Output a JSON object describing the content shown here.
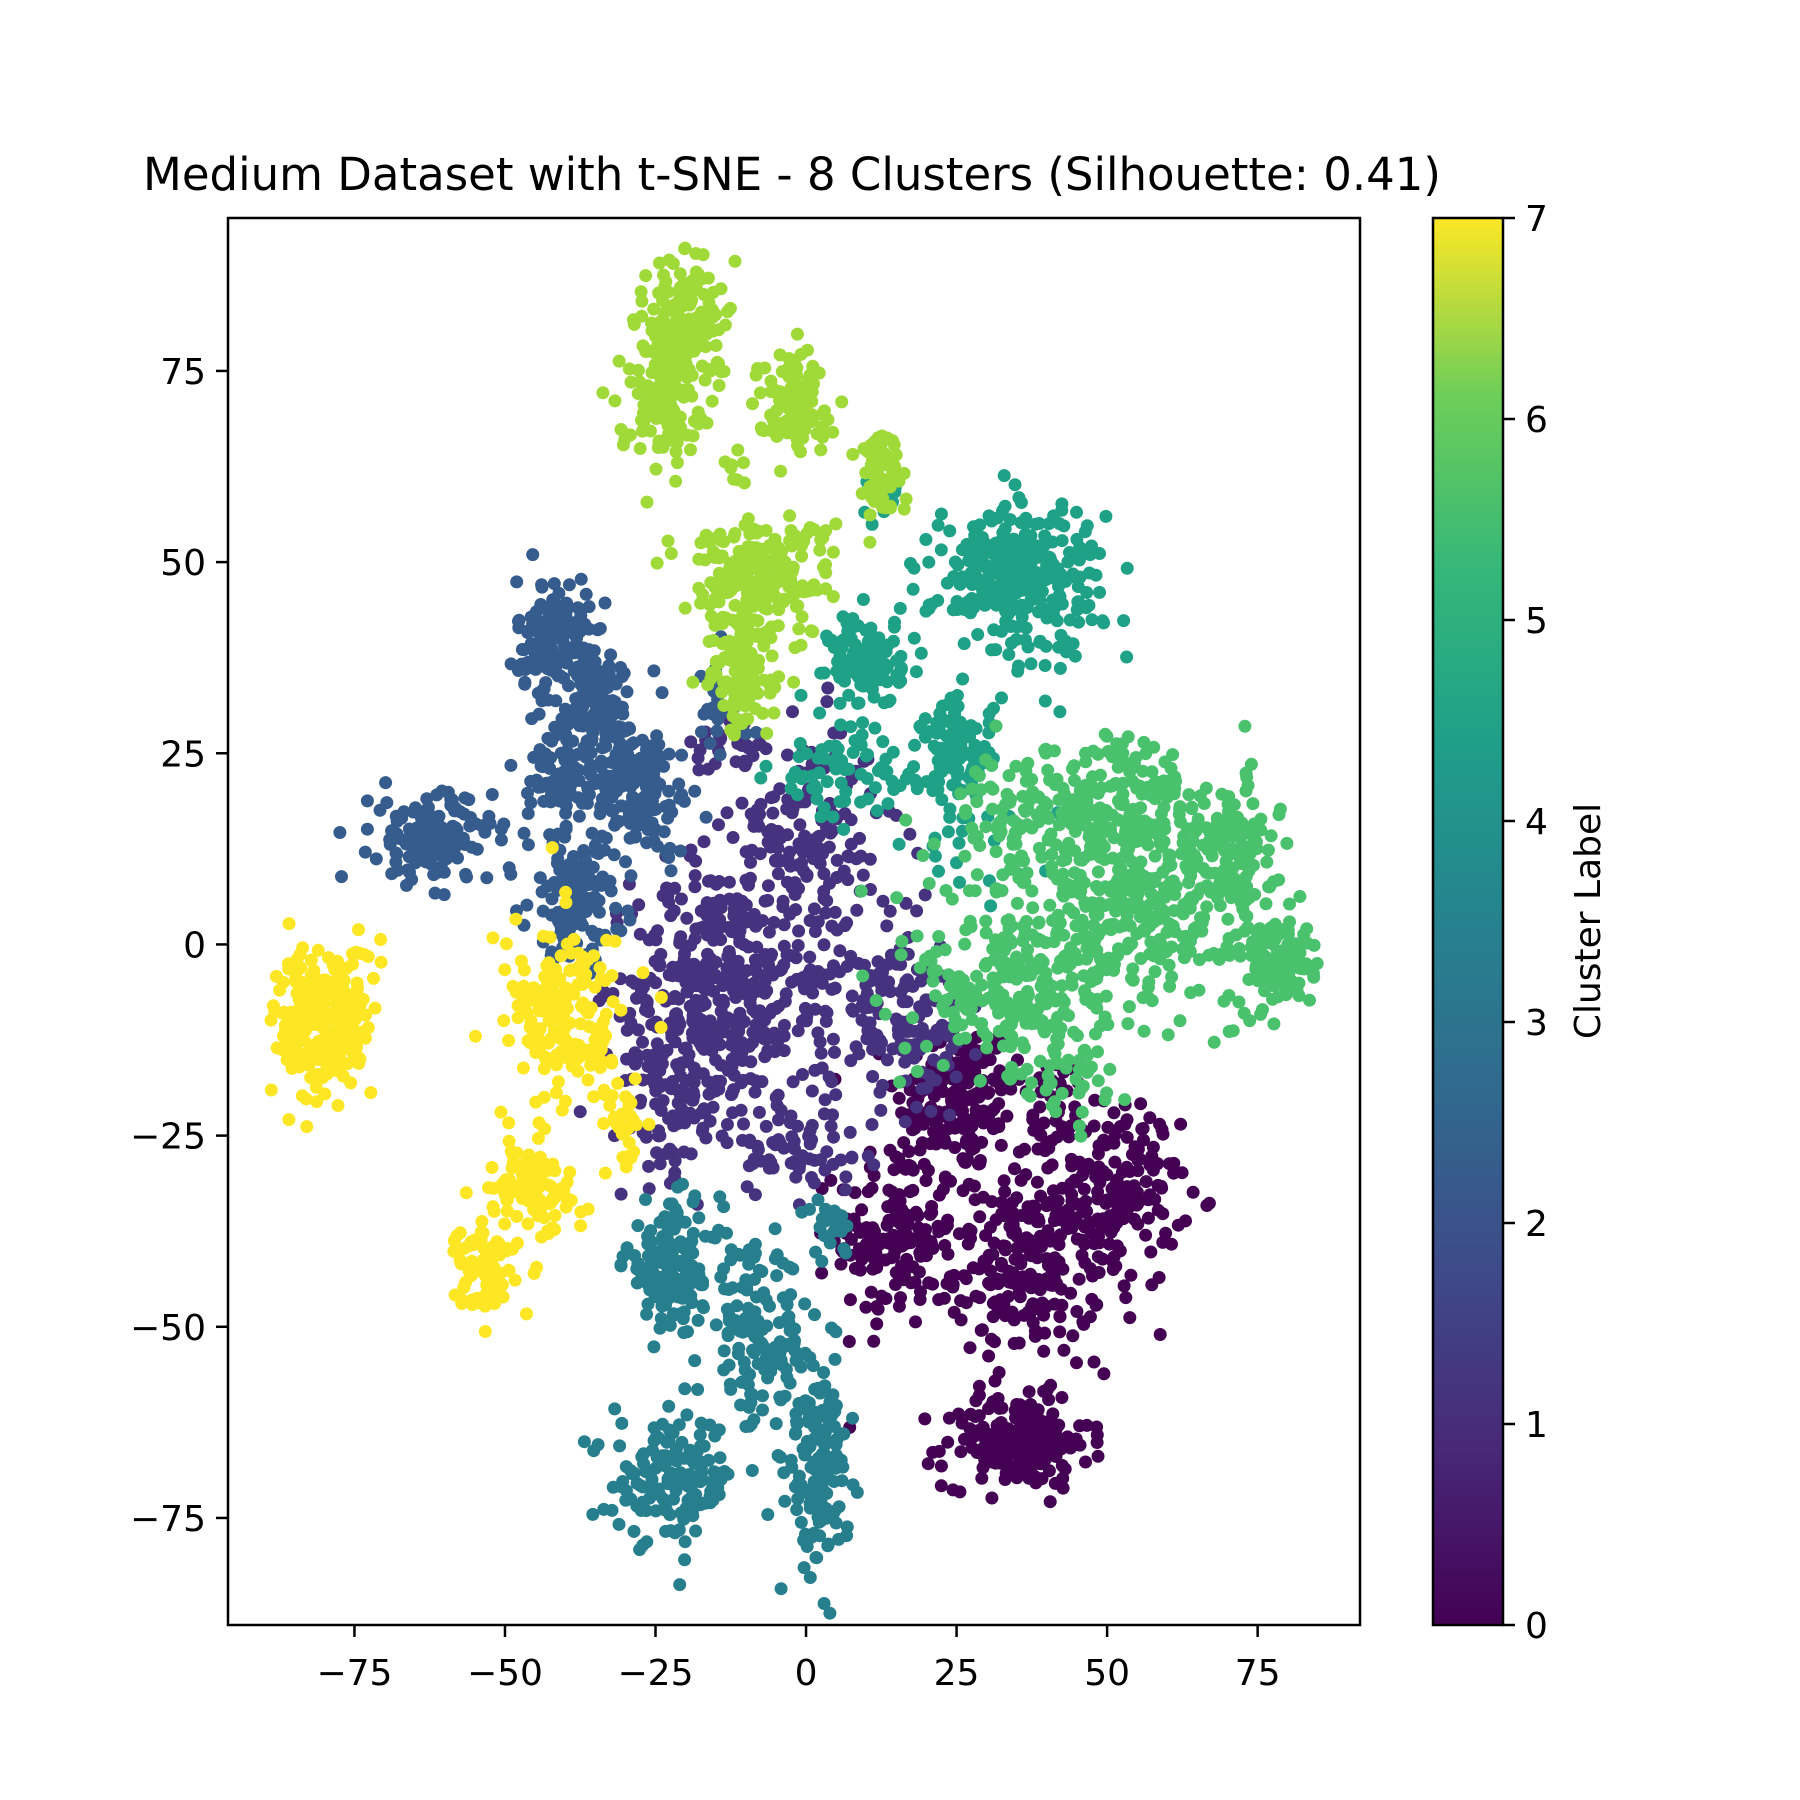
{
  "chart_data": {
    "type": "scatter",
    "title": "Medium Dataset with t-SNE - 8 Clusters (Silhouette: 0.41)",
    "xlabel": "",
    "ylabel": "",
    "xlim": [
      -96,
      92
    ],
    "ylim": [
      -89,
      95
    ],
    "x_ticks": [
      -75,
      -50,
      -25,
      0,
      25,
      50,
      75
    ],
    "x_tick_labels": [
      "−75",
      "−50",
      "−25",
      "0",
      "25",
      "50",
      "75"
    ],
    "y_ticks": [
      -75,
      -50,
      -25,
      0,
      25,
      50,
      75
    ],
    "y_tick_labels": [
      "−75",
      "−50",
      "−25",
      "0",
      "25",
      "50",
      "75"
    ],
    "grid": false,
    "colormap": "viridis",
    "colorbar": {
      "label": "Cluster Label",
      "range": [
        0,
        7
      ],
      "ticks": [
        0,
        1,
        2,
        3,
        4,
        5,
        6,
        7
      ],
      "tick_labels": [
        "0",
        "1",
        "2",
        "3",
        "4",
        "5",
        "6",
        "7"
      ]
    },
    "cluster_colors": [
      "#440154",
      "#46327e",
      "#365c8d",
      "#277f8e",
      "#1fa187",
      "#4ac16d",
      "#a0da39",
      "#fde725"
    ],
    "clusters": [
      {
        "label": 0,
        "blobs": [
          {
            "cx": 25,
            "cy": -20,
            "sx": 5,
            "sy": 5,
            "n": 160
          },
          {
            "cx": 15,
            "cy": -38,
            "sx": 5,
            "sy": 6,
            "n": 170
          },
          {
            "cx": 37,
            "cy": -42,
            "sx": 6,
            "sy": 6,
            "n": 220
          },
          {
            "cx": 52,
            "cy": -33,
            "sx": 5,
            "sy": 6,
            "n": 150
          },
          {
            "cx": 35,
            "cy": -65,
            "sx": 6,
            "sy": 3,
            "n": 200
          },
          {
            "cx": 40,
            "cy": -22,
            "sx": 6,
            "sy": 4,
            "n": 60
          }
        ]
      },
      {
        "label": 1,
        "blobs": [
          {
            "cx": -15,
            "cy": -5,
            "sx": 7,
            "sy": 8,
            "n": 320
          },
          {
            "cx": -22,
            "cy": -18,
            "sx": 5,
            "sy": 6,
            "n": 120
          },
          {
            "cx": 0,
            "cy": 15,
            "sx": 6,
            "sy": 7,
            "n": 160
          },
          {
            "cx": 5,
            "cy": -8,
            "sx": 9,
            "sy": 8,
            "n": 160
          },
          {
            "cx": 18,
            "cy": -10,
            "sx": 4,
            "sy": 5,
            "n": 80
          },
          {
            "cx": -2,
            "cy": -27,
            "sx": 6,
            "sy": 3,
            "n": 60
          },
          {
            "cx": -13,
            "cy": 25,
            "sx": 3,
            "sy": 3,
            "n": 25
          }
        ]
      },
      {
        "label": 2,
        "blobs": [
          {
            "cx": -42,
            "cy": 40,
            "sx": 3,
            "sy": 4,
            "n": 130
          },
          {
            "cx": -35,
            "cy": 30,
            "sx": 4,
            "sy": 5,
            "n": 140
          },
          {
            "cx": -27,
            "cy": 20,
            "sx": 4,
            "sy": 4,
            "n": 130
          },
          {
            "cx": -41,
            "cy": 22,
            "sx": 2.5,
            "sy": 3,
            "n": 70
          },
          {
            "cx": -62,
            "cy": 14,
            "sx": 5,
            "sy": 3,
            "n": 160
          },
          {
            "cx": -38,
            "cy": 6,
            "sx": 4,
            "sy": 4,
            "n": 140
          },
          {
            "cx": -15,
            "cy": 30,
            "sx": 3,
            "sy": 4,
            "n": 30
          }
        ]
      },
      {
        "label": 3,
        "blobs": [
          {
            "cx": -22,
            "cy": -42,
            "sx": 4,
            "sy": 4,
            "n": 150
          },
          {
            "cx": -8,
            "cy": -52,
            "sx": 4,
            "sy": 6,
            "n": 140
          },
          {
            "cx": -22,
            "cy": -70,
            "sx": 5,
            "sy": 4,
            "n": 150
          },
          {
            "cx": 2,
            "cy": -68,
            "sx": 2.5,
            "sy": 7,
            "n": 150
          },
          {
            "cx": 4,
            "cy": -37,
            "sx": 1.5,
            "sy": 2,
            "n": 20
          }
        ]
      },
      {
        "label": 4,
        "blobs": [
          {
            "cx": 35,
            "cy": 48,
            "sx": 7,
            "sy": 5,
            "n": 300
          },
          {
            "cx": 10,
            "cy": 37,
            "sx": 3,
            "sy": 3,
            "n": 120
          },
          {
            "cx": 25,
            "cy": 26,
            "sx": 3,
            "sy": 3,
            "n": 100
          },
          {
            "cx": 6,
            "cy": 22,
            "sx": 6,
            "sy": 3,
            "n": 70
          },
          {
            "cx": 13,
            "cy": 59,
            "sx": 2,
            "sy": 2,
            "n": 15
          },
          {
            "cx": 27,
            "cy": 15,
            "sx": 5,
            "sy": 4,
            "n": 30
          }
        ]
      },
      {
        "label": 5,
        "blobs": [
          {
            "cx": 35,
            "cy": 15,
            "sx": 6,
            "sy": 5,
            "n": 120
          },
          {
            "cx": 52,
            "cy": 18,
            "sx": 6,
            "sy": 5,
            "n": 160
          },
          {
            "cx": 55,
            "cy": 5,
            "sx": 8,
            "sy": 6,
            "n": 280
          },
          {
            "cx": 70,
            "cy": 12,
            "sx": 4,
            "sy": 5,
            "n": 130
          },
          {
            "cx": 78,
            "cy": -2,
            "sx": 3,
            "sy": 3,
            "n": 110
          },
          {
            "cx": 35,
            "cy": -6,
            "sx": 8,
            "sy": 6,
            "n": 240
          },
          {
            "cx": 43,
            "cy": -18,
            "sx": 5,
            "sy": 3,
            "n": 40
          }
        ]
      },
      {
        "label": 6,
        "blobs": [
          {
            "cx": -20,
            "cy": 82,
            "sx": 3,
            "sy": 4,
            "n": 140
          },
          {
            "cx": -24,
            "cy": 72,
            "sx": 3.5,
            "sy": 4,
            "n": 130
          },
          {
            "cx": -2,
            "cy": 71,
            "sx": 3,
            "sy": 3,
            "n": 110
          },
          {
            "cx": 12,
            "cy": 62,
            "sx": 2,
            "sy": 3,
            "n": 60
          },
          {
            "cx": -12,
            "cy": 63,
            "sx": 1,
            "sy": 1.5,
            "n": 8
          },
          {
            "cx": -8,
            "cy": 48,
            "sx": 6,
            "sy": 4,
            "n": 220
          },
          {
            "cx": -10,
            "cy": 35,
            "sx": 3,
            "sy": 4,
            "n": 100
          }
        ]
      },
      {
        "label": 7,
        "blobs": [
          {
            "cx": -80,
            "cy": -10,
            "sx": 4,
            "sy": 5,
            "n": 260
          },
          {
            "cx": -40,
            "cy": -10,
            "sx": 5,
            "sy": 6,
            "n": 180
          },
          {
            "cx": -46,
            "cy": -32,
            "sx": 4,
            "sy": 3,
            "n": 100
          },
          {
            "cx": -53,
            "cy": -42,
            "sx": 2.5,
            "sy": 3,
            "n": 80
          },
          {
            "cx": -30,
            "cy": -23,
            "sx": 1.5,
            "sy": 3,
            "n": 30
          }
        ]
      }
    ]
  }
}
